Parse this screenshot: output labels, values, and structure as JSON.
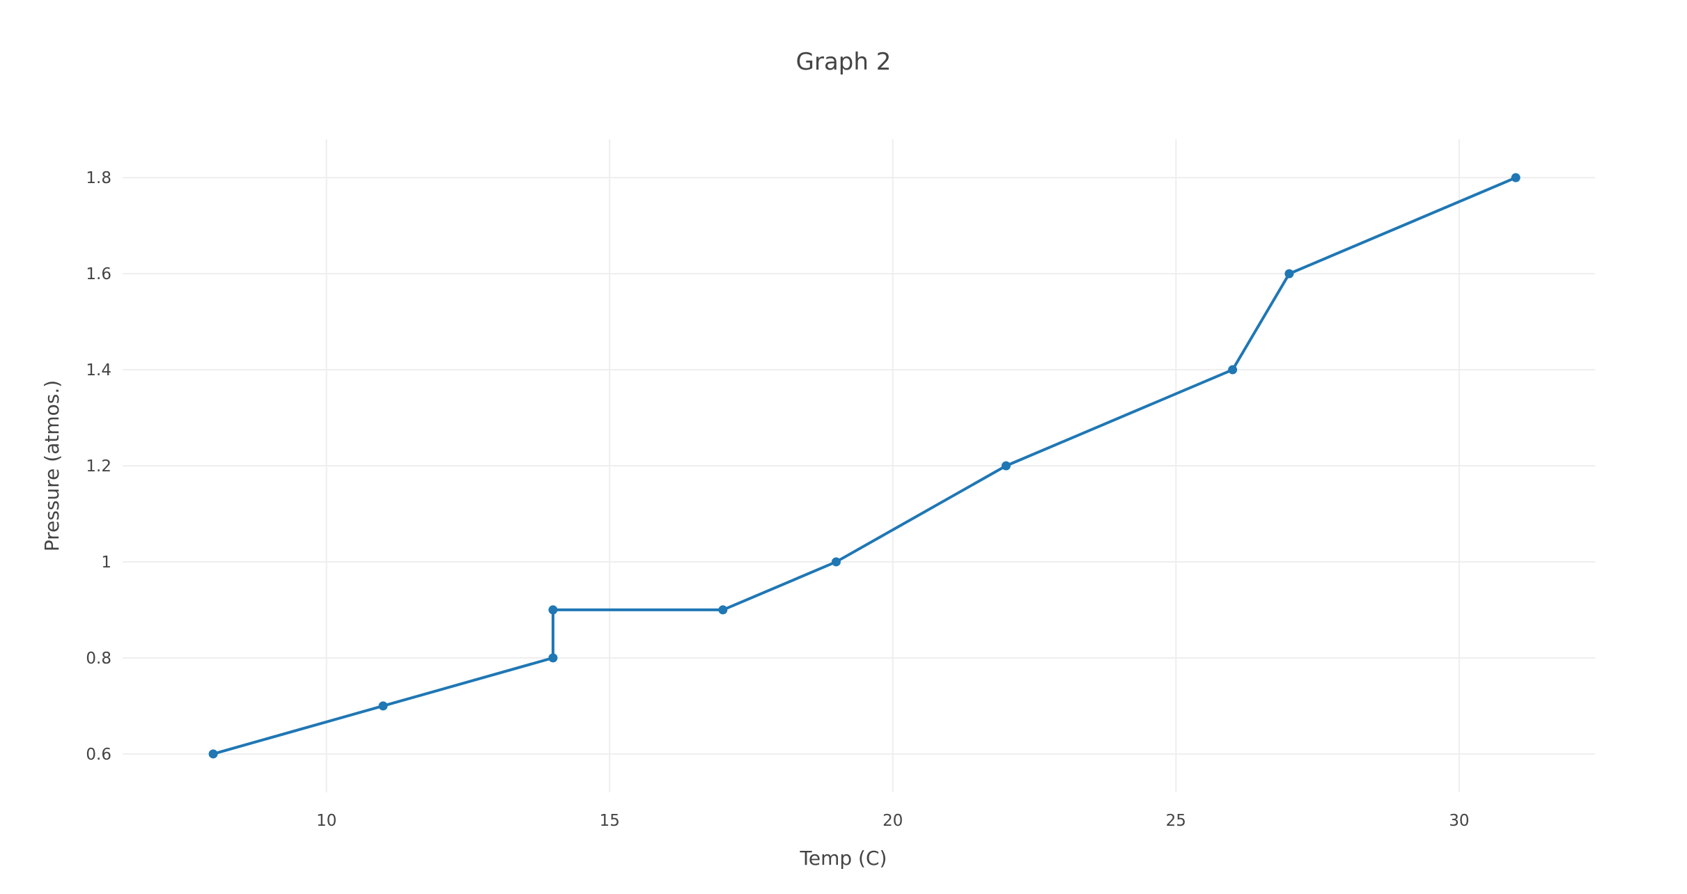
{
  "chart_data": {
    "type": "line",
    "title": "Graph 2",
    "xlabel": "Temp (C)",
    "ylabel": "Pressure (atmos.)",
    "xlim": [
      6.4,
      32.4
    ],
    "ylim": [
      0.52,
      1.88
    ],
    "x_ticks": [
      10,
      15,
      20,
      25,
      30
    ],
    "x_tick_labels": [
      "10",
      "15",
      "20",
      "25",
      "30"
    ],
    "y_ticks": [
      0.6,
      0.8,
      1.0,
      1.2,
      1.4,
      1.6,
      1.8
    ],
    "y_tick_labels": [
      "0.6",
      "0.8",
      "1",
      "1.2",
      "1.4",
      "1.6",
      "1.8"
    ],
    "grid": true,
    "legend": "none",
    "series": [
      {
        "color": "#1f77b4",
        "mode": "lines+markers",
        "x": [
          8,
          11,
          14,
          14,
          17,
          19,
          22,
          26,
          27,
          31
        ],
        "y": [
          0.6,
          0.7,
          0.8,
          0.9,
          0.9,
          1.0,
          1.2,
          1.4,
          1.6,
          1.8
        ]
      }
    ]
  }
}
